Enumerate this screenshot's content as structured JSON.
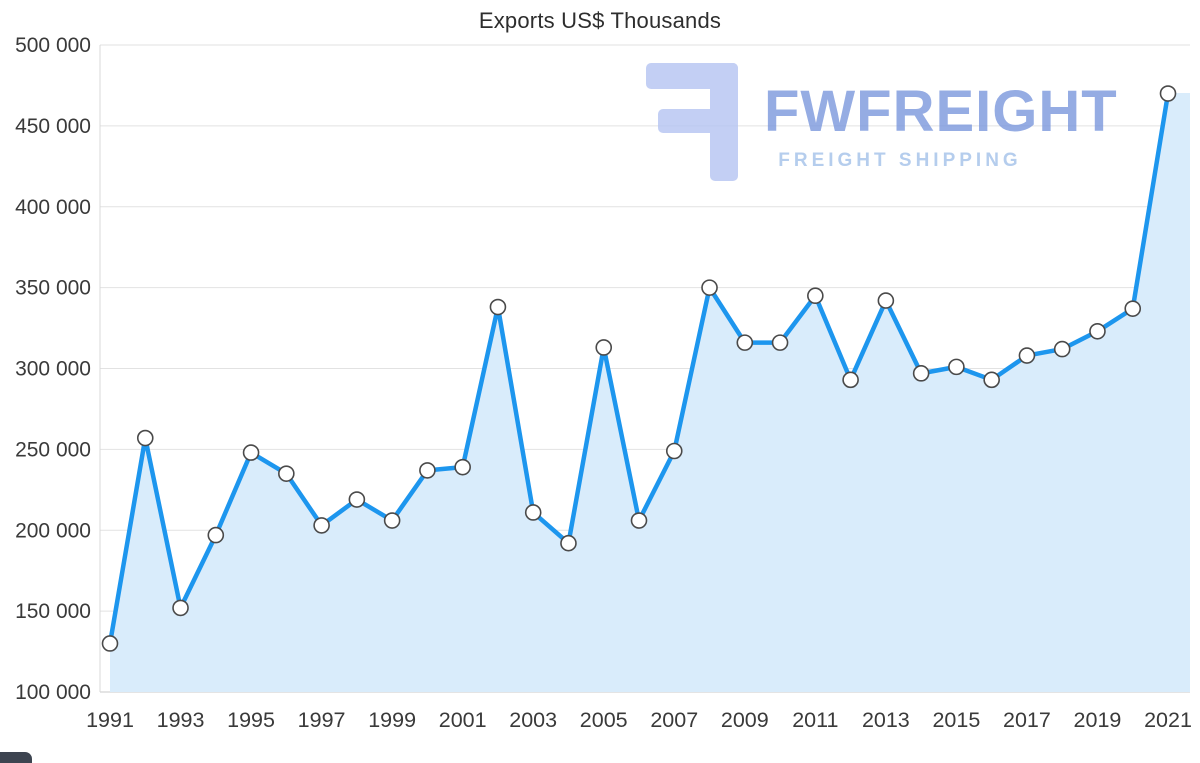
{
  "chart": {
    "title": "Exports US$ Thousands",
    "title_color": "#2e2e2e"
  },
  "watermark": {
    "brand": "FWFREIGHT",
    "tagline": "FREIGHT SHIPPING",
    "brand_color": "#7e9ade",
    "tagline_color": "#a5c3ea",
    "glyph_color": "#b6c5f2"
  },
  "chart_data": {
    "type": "area",
    "title": "Exports US$ Thousands",
    "xlabel": "",
    "ylabel": "",
    "x": [
      1991,
      1992,
      1993,
      1994,
      1995,
      1996,
      1997,
      1998,
      1999,
      2000,
      2001,
      2002,
      2003,
      2004,
      2005,
      2006,
      2007,
      2008,
      2009,
      2010,
      2011,
      2012,
      2013,
      2014,
      2015,
      2016,
      2017,
      2018,
      2019,
      2020,
      2021
    ],
    "values": [
      130000,
      257000,
      152000,
      197000,
      248000,
      235000,
      203000,
      219000,
      206000,
      237000,
      239000,
      338000,
      211000,
      192000,
      313000,
      206000,
      249000,
      350000,
      316000,
      316000,
      345000,
      293000,
      342000,
      297000,
      301000,
      293000,
      308000,
      312000,
      323000,
      337000,
      470000
    ],
    "ylim": [
      100000,
      500000
    ],
    "y_ticks": [
      100000,
      150000,
      200000,
      250000,
      300000,
      350000,
      400000,
      450000,
      500000
    ],
    "y_tick_labels": [
      "100 000",
      "150 000",
      "200 000",
      "250 000",
      "300 000",
      "350 000",
      "400 000",
      "450 000",
      "500 000"
    ],
    "x_tick_labels": [
      "1991",
      "1993",
      "1995",
      "1997",
      "1999",
      "2001",
      "2003",
      "2005",
      "2007",
      "2009",
      "2011",
      "2013",
      "2015",
      "2017",
      "2019",
      "2021"
    ],
    "grid": "horizontal",
    "legend": "none",
    "line_color": "#1d96ee",
    "fill_color": "#d9ecfb",
    "marker_fill": "#ffffff",
    "marker_stroke": "#4a4a4a",
    "grid_color": "#e2e2e2",
    "x_axis_color": "#c8c8c8",
    "y_axis_color": "#d8d8d8",
    "tick_label_color": "#3a3a3a"
  }
}
